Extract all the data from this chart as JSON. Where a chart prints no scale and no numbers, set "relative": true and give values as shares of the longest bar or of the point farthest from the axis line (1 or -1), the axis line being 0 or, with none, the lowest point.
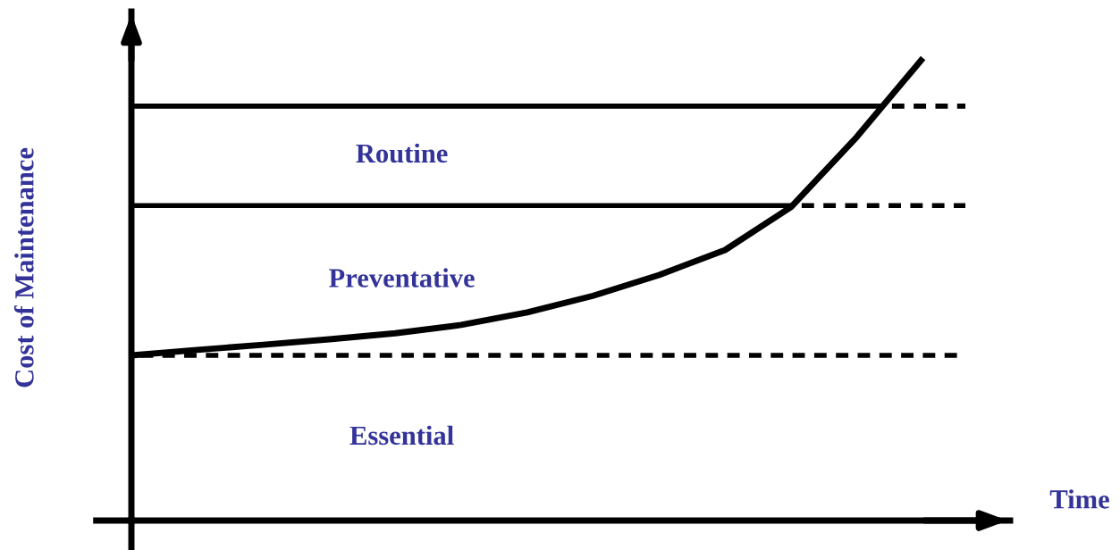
{
  "chart_data": {
    "type": "line",
    "relative": true,
    "xlabel": "Time",
    "ylabel": "Cost of Maintenance",
    "categories": [
      null,
      null,
      null,
      null,
      null,
      null,
      null,
      null,
      null,
      null,
      null,
      null,
      null
    ],
    "series": [
      {
        "color": "#000000",
        "values": [
          0.357,
          0.369,
          0.38,
          0.392,
          0.405,
          0.423,
          0.45,
          0.486,
          0.531,
          0.585,
          0.678,
          0.83,
          1.0
        ]
      }
    ],
    "ref_lines": [
      {
        "axis": "y",
        "value": 0.357,
        "line_style": "dashed",
        "color": "#000000"
      },
      {
        "axis": "y",
        "value": 0.681,
        "line_style": "dashed",
        "color": "#000000"
      },
      {
        "axis": "y",
        "value": 0.896,
        "line_style": "dashed",
        "color": "#000000"
      }
    ],
    "annotations": [
      "Routine",
      "Preventative",
      "Essential"
    ],
    "grid": false,
    "legend": false
  }
}
